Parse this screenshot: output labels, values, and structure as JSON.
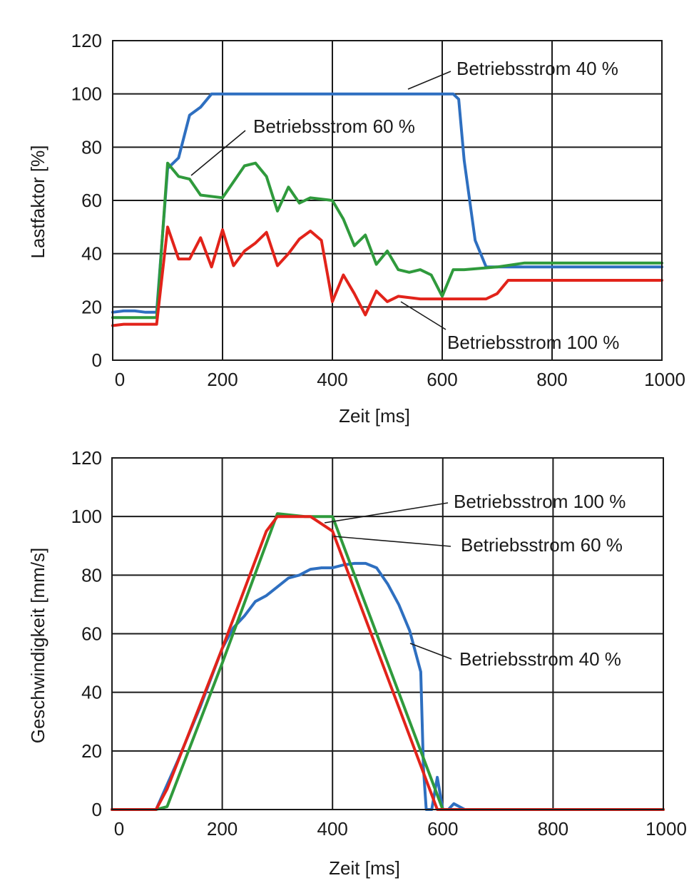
{
  "chart_data": [
    {
      "type": "line",
      "title": "",
      "xlabel": "Zeit [ms]",
      "ylabel": "Lastfaktor [%]",
      "xlim": [
        0,
        1000
      ],
      "ylim": [
        0,
        120
      ],
      "xticks": [
        0,
        200,
        400,
        600,
        800,
        1000
      ],
      "yticks": [
        0,
        20,
        40,
        60,
        80,
        100,
        120
      ],
      "grid": true,
      "series": [
        {
          "name": "Betriebsstrom 40 %",
          "color": "#2e6fc0",
          "x": [
            0,
            20,
            40,
            60,
            80,
            100,
            120,
            140,
            160,
            180,
            200,
            300,
            400,
            500,
            600,
            620,
            630,
            640,
            660,
            680,
            700,
            750,
            800,
            850,
            900,
            950,
            1000
          ],
          "y": [
            18,
            18.5,
            18.5,
            18,
            18,
            72,
            76,
            92,
            95,
            100,
            100,
            100,
            100,
            100,
            100,
            100,
            98,
            75,
            45,
            35,
            35,
            35,
            35,
            35,
            35,
            35,
            35
          ]
        },
        {
          "name": "Betriebsstrom 60 %",
          "color": "#2f9a3c",
          "x": [
            0,
            80,
            100,
            120,
            140,
            160,
            200,
            240,
            260,
            280,
            300,
            320,
            340,
            360,
            400,
            420,
            440,
            460,
            480,
            500,
            520,
            540,
            560,
            580,
            600,
            620,
            640,
            700,
            750,
            800,
            850,
            900,
            950,
            1000
          ],
          "y": [
            16,
            16,
            74,
            69,
            68,
            62,
            61,
            73,
            74,
            69,
            56,
            65,
            59,
            61,
            60,
            53,
            43,
            47,
            36,
            41,
            34,
            33,
            34,
            32,
            24,
            34,
            34,
            35,
            36.5,
            36.5,
            36.5,
            36.5,
            36.5,
            36.5
          ]
        },
        {
          "name": "Betriebsstrom 100 %",
          "color": "#e2231a",
          "x": [
            0,
            20,
            80,
            100,
            120,
            140,
            160,
            180,
            200,
            220,
            240,
            260,
            280,
            300,
            320,
            340,
            360,
            380,
            400,
            420,
            440,
            460,
            480,
            500,
            520,
            560,
            600,
            640,
            680,
            700,
            720,
            750,
            800,
            850,
            900,
            950,
            1000
          ],
          "y": [
            13,
            13.5,
            13.5,
            50,
            38,
            38,
            46,
            35,
            49,
            35.5,
            41,
            44,
            48,
            35.5,
            40,
            45.5,
            48.5,
            45,
            22,
            32,
            25,
            17,
            26,
            22,
            24,
            23,
            23,
            23,
            23,
            25,
            30,
            30,
            30,
            30,
            30,
            30,
            30
          ]
        }
      ],
      "annotations": [
        {
          "text": "Betriebsstrom 40 %",
          "series": "Betriebsstrom 40 %"
        },
        {
          "text": "Betriebsstrom 60 %",
          "series": "Betriebsstrom 60 %"
        },
        {
          "text": "Betriebsstrom 100 %",
          "series": "Betriebsstrom 100 %"
        }
      ]
    },
    {
      "type": "line",
      "title": "",
      "xlabel": "Zeit [ms]",
      "ylabel": "Geschwindigkeit [mm/s]",
      "xlim": [
        0,
        1000
      ],
      "ylim": [
        0,
        120
      ],
      "xticks": [
        0,
        200,
        400,
        600,
        800,
        1000
      ],
      "yticks": [
        0,
        20,
        40,
        60,
        80,
        100,
        120
      ],
      "grid": true,
      "series": [
        {
          "name": "Betriebsstrom 40 %",
          "color": "#2e6fc0",
          "x": [
            0,
            80,
            120,
            160,
            200,
            220,
            240,
            260,
            280,
            300,
            320,
            340,
            360,
            380,
            400,
            420,
            440,
            460,
            480,
            500,
            520,
            540,
            560,
            565,
            570,
            580,
            590,
            600,
            610,
            620,
            640,
            660,
            700,
            800,
            900,
            1000
          ],
          "y": [
            0,
            0,
            17,
            35,
            55,
            62,
            66,
            71,
            73,
            76,
            79,
            80,
            82,
            82.5,
            82.5,
            83.5,
            84,
            84,
            82.5,
            77,
            70,
            61,
            47,
            14,
            0,
            0,
            11,
            0,
            0,
            2,
            0,
            0,
            0,
            0,
            0,
            0
          ]
        },
        {
          "name": "Betriebsstrom 60 %",
          "color": "#2f9a3c",
          "x": [
            0,
            80,
            100,
            200,
            300,
            350,
            400,
            500,
            600,
            620,
            700,
            800,
            900,
            1000
          ],
          "y": [
            0,
            0,
            1,
            50,
            101,
            100,
            100,
            50,
            0,
            0,
            0,
            0,
            0,
            0
          ]
        },
        {
          "name": "Betriebsstrom 100 %",
          "color": "#e2231a",
          "x": [
            0,
            80,
            100,
            200,
            280,
            300,
            360,
            400,
            500,
            590,
            600,
            700,
            800,
            900,
            1000
          ],
          "y": [
            0,
            0,
            7,
            55,
            95,
            100,
            100,
            95,
            45,
            0,
            0,
            0,
            0,
            0,
            0
          ]
        }
      ],
      "annotations": [
        {
          "text": "Betriebsstrom 100 %",
          "series": "Betriebsstrom 100 %"
        },
        {
          "text": "Betriebsstrom 60 %",
          "series": "Betriebsstrom 60 %"
        },
        {
          "text": "Betriebsstrom 40 %",
          "series": "Betriebsstrom 40 %"
        }
      ]
    }
  ]
}
